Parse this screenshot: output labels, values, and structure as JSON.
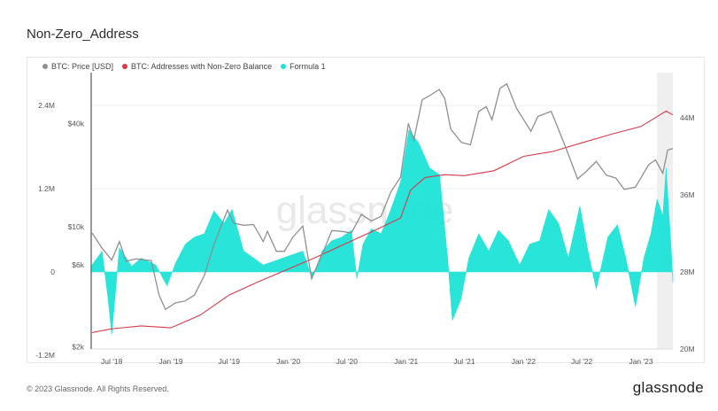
{
  "page": {
    "title": "Non-Zero_Address",
    "copyright": "© 2023 Glassnode. All Rights Reserved.",
    "brand": "glassnode",
    "watermark": "glassnode"
  },
  "colors": {
    "price": "#8f8f8f",
    "addresses": "#d63a4a",
    "formula": "#1ee3d8",
    "grid": "#ececec",
    "shade": "#ebebeb"
  },
  "chart_data": {
    "type": "line",
    "title": "Non-Zero_Address",
    "legend": [
      "BTC: Price [USD]",
      "BTC: Addresses with Non-Zero Balance",
      "Formula 1"
    ],
    "legend_position": "top-left",
    "x_ticks": [
      "Jul '18",
      "Jan '19",
      "Jul '19",
      "Jan '20",
      "Jul '20",
      "Jan '21",
      "Jul '21",
      "Jan '22",
      "Jul '22",
      "Jan '23"
    ],
    "x_range": [
      "2018-05-01",
      "2023-04-10"
    ],
    "shaded_range": [
      "2023-02-20",
      "2023-04-10"
    ],
    "y_left": {
      "ticks": [
        "2.4M",
        "1.2M",
        "0",
        "-1.2M"
      ],
      "range": [
        -1200000,
        2400000
      ]
    },
    "y_price": {
      "ticks": [
        "$40k",
        "$10k",
        "$6k",
        "$2k"
      ],
      "scale": "log"
    },
    "y_right": {
      "ticks": [
        "44M",
        "36M",
        "28M",
        "20M"
      ],
      "range": [
        20000000,
        44000000
      ]
    },
    "grid": true,
    "series": [
      {
        "name": "BTC: Price [USD]",
        "axis": "price",
        "points": [
          [
            "2018-05-01",
            9200
          ],
          [
            "2018-06-01",
            7500
          ],
          [
            "2018-07-01",
            6400
          ],
          [
            "2018-07-25",
            8200
          ],
          [
            "2018-08-15",
            6300
          ],
          [
            "2018-09-15",
            6500
          ],
          [
            "2018-11-01",
            6350
          ],
          [
            "2018-11-25",
            4000
          ],
          [
            "2018-12-15",
            3300
          ],
          [
            "2019-01-15",
            3600
          ],
          [
            "2019-02-15",
            3700
          ],
          [
            "2019-03-15",
            4000
          ],
          [
            "2019-04-15",
            5200
          ],
          [
            "2019-05-15",
            7900
          ],
          [
            "2019-06-26",
            12500
          ],
          [
            "2019-07-15",
            10500
          ],
          [
            "2019-08-15",
            10200
          ],
          [
            "2019-09-15",
            10300
          ],
          [
            "2019-10-15",
            8200
          ],
          [
            "2019-10-28",
            9400
          ],
          [
            "2019-11-25",
            7200
          ],
          [
            "2019-12-20",
            7200
          ],
          [
            "2020-01-15",
            8700
          ],
          [
            "2020-02-15",
            10100
          ],
          [
            "2020-03-13",
            5000
          ],
          [
            "2020-04-15",
            6900
          ],
          [
            "2020-05-15",
            9500
          ],
          [
            "2020-06-15",
            9400
          ],
          [
            "2020-07-15",
            9200
          ],
          [
            "2020-08-15",
            11800
          ],
          [
            "2020-09-15",
            10800
          ],
          [
            "2020-10-15",
            11500
          ],
          [
            "2020-11-15",
            16000
          ],
          [
            "2020-12-15",
            19500
          ],
          [
            "2021-01-08",
            40000
          ],
          [
            "2021-01-25",
            32000
          ],
          [
            "2021-02-20",
            55000
          ],
          [
            "2021-03-15",
            58000
          ],
          [
            "2021-04-14",
            63000
          ],
          [
            "2021-05-01",
            56000
          ],
          [
            "2021-05-20",
            37000
          ],
          [
            "2021-06-22",
            31000
          ],
          [
            "2021-07-20",
            30000
          ],
          [
            "2021-08-15",
            47000
          ],
          [
            "2021-09-07",
            50000
          ],
          [
            "2021-09-25",
            42000
          ],
          [
            "2021-10-20",
            64000
          ],
          [
            "2021-11-10",
            68000
          ],
          [
            "2021-12-10",
            49000
          ],
          [
            "2022-01-24",
            36000
          ],
          [
            "2022-02-15",
            44000
          ],
          [
            "2022-03-28",
            47000
          ],
          [
            "2022-05-12",
            29000
          ],
          [
            "2022-06-18",
            19000
          ],
          [
            "2022-07-15",
            21000
          ],
          [
            "2022-08-15",
            24000
          ],
          [
            "2022-09-15",
            20000
          ],
          [
            "2022-10-15",
            19200
          ],
          [
            "2022-11-10",
            16500
          ],
          [
            "2022-12-15",
            17000
          ],
          [
            "2023-01-25",
            23000
          ],
          [
            "2023-02-15",
            24500
          ],
          [
            "2023-03-10",
            20500
          ],
          [
            "2023-03-25",
            28000
          ],
          [
            "2023-04-10",
            28500
          ]
        ]
      },
      {
        "name": "BTC: Addresses with Non-Zero Balance",
        "axis": "right",
        "points": [
          [
            "2018-05-01",
            21700000
          ],
          [
            "2018-07-01",
            22100000
          ],
          [
            "2018-10-01",
            22400000
          ],
          [
            "2019-01-01",
            22200000
          ],
          [
            "2019-04-01",
            23500000
          ],
          [
            "2019-07-01",
            25600000
          ],
          [
            "2019-10-01",
            27000000
          ],
          [
            "2020-01-01",
            28300000
          ],
          [
            "2020-04-01",
            29600000
          ],
          [
            "2020-07-01",
            31000000
          ],
          [
            "2020-10-01",
            32400000
          ],
          [
            "2020-12-15",
            33600000
          ],
          [
            "2021-01-15",
            36500000
          ],
          [
            "2021-03-01",
            37800000
          ],
          [
            "2021-05-01",
            38100000
          ],
          [
            "2021-07-01",
            38000000
          ],
          [
            "2021-10-01",
            38500000
          ],
          [
            "2022-01-01",
            40000000
          ],
          [
            "2022-04-01",
            40500000
          ],
          [
            "2022-07-01",
            41400000
          ],
          [
            "2022-10-01",
            42300000
          ],
          [
            "2023-01-01",
            43100000
          ],
          [
            "2023-03-20",
            44700000
          ],
          [
            "2023-04-10",
            44300000
          ]
        ]
      },
      {
        "name": "Formula 1",
        "axis": "left",
        "points": [
          [
            "2018-05-01",
            100000
          ],
          [
            "2018-06-01",
            300000
          ],
          [
            "2018-06-20",
            -400000
          ],
          [
            "2018-07-01",
            -900000
          ],
          [
            "2018-07-25",
            350000
          ],
          [
            "2018-09-01",
            80000
          ],
          [
            "2018-10-01",
            200000
          ],
          [
            "2018-11-15",
            100000
          ],
          [
            "2018-12-20",
            -200000
          ],
          [
            "2019-01-15",
            120000
          ],
          [
            "2019-02-15",
            400000
          ],
          [
            "2019-03-15",
            500000
          ],
          [
            "2019-04-15",
            550000
          ],
          [
            "2019-05-15",
            880000
          ],
          [
            "2019-06-15",
            700000
          ],
          [
            "2019-07-10",
            900000
          ],
          [
            "2019-08-15",
            300000
          ],
          [
            "2019-09-15",
            200000
          ],
          [
            "2019-10-15",
            100000
          ],
          [
            "2019-11-15",
            150000
          ],
          [
            "2019-12-15",
            200000
          ],
          [
            "2020-01-15",
            250000
          ],
          [
            "2020-02-15",
            300000
          ],
          [
            "2020-03-15",
            -100000
          ],
          [
            "2020-04-15",
            300000
          ],
          [
            "2020-05-15",
            450000
          ],
          [
            "2020-06-15",
            500000
          ],
          [
            "2020-07-15",
            600000
          ],
          [
            "2020-08-01",
            -100000
          ],
          [
            "2020-08-20",
            400000
          ],
          [
            "2020-09-15",
            620000
          ],
          [
            "2020-10-15",
            550000
          ],
          [
            "2020-11-15",
            900000
          ],
          [
            "2020-12-15",
            1300000
          ],
          [
            "2021-01-10",
            2050000
          ],
          [
            "2021-02-10",
            1850000
          ],
          [
            "2021-03-15",
            1500000
          ],
          [
            "2021-04-15",
            1400000
          ],
          [
            "2021-05-10",
            200000
          ],
          [
            "2021-05-25",
            -700000
          ],
          [
            "2021-06-20",
            -400000
          ],
          [
            "2021-07-15",
            200000
          ],
          [
            "2021-08-15",
            550000
          ],
          [
            "2021-09-15",
            300000
          ],
          [
            "2021-10-15",
            600000
          ],
          [
            "2021-11-15",
            450000
          ],
          [
            "2021-12-20",
            100000
          ],
          [
            "2022-01-20",
            400000
          ],
          [
            "2022-02-20",
            450000
          ],
          [
            "2022-03-20",
            900000
          ],
          [
            "2022-04-20",
            700000
          ],
          [
            "2022-05-20",
            200000
          ],
          [
            "2022-06-25",
            950000
          ],
          [
            "2022-07-20",
            300000
          ],
          [
            "2022-08-15",
            -250000
          ],
          [
            "2022-09-20",
            500000
          ],
          [
            "2022-10-20",
            680000
          ],
          [
            "2022-11-15",
            200000
          ],
          [
            "2022-12-15",
            -500000
          ],
          [
            "2023-01-10",
            200000
          ],
          [
            "2023-02-01",
            550000
          ],
          [
            "2023-02-20",
            1050000
          ],
          [
            "2023-03-10",
            800000
          ],
          [
            "2023-03-20",
            1500000
          ],
          [
            "2023-04-05",
            300000
          ],
          [
            "2023-04-10",
            -150000
          ]
        ]
      }
    ]
  }
}
